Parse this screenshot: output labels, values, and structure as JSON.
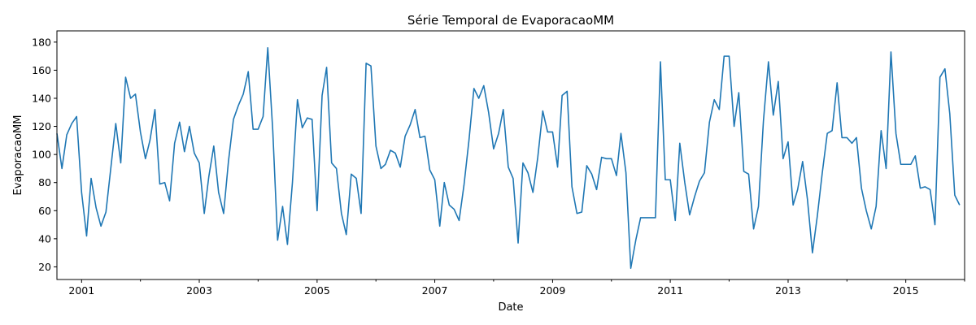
{
  "chart_data": {
    "type": "line",
    "title": "Série Temporal de EvaporacaoMM",
    "xlabel": "Date",
    "ylabel": "EvaporacaoMM",
    "xlim": [
      "2000-08-01",
      "2016-01-01"
    ],
    "ylim": [
      11,
      188
    ],
    "grid": false,
    "line_color": "#1f77b4",
    "y_ticks": [
      20,
      40,
      60,
      80,
      100,
      120,
      140,
      160,
      180
    ],
    "x_major_ticks": [
      {
        "date": "2001-01-01",
        "label": "2001"
      },
      {
        "date": "2003-01-01",
        "label": "2003"
      },
      {
        "date": "2005-01-01",
        "label": "2005"
      },
      {
        "date": "2007-01-01",
        "label": "2007"
      },
      {
        "date": "2009-01-01",
        "label": "2009"
      },
      {
        "date": "2011-01-01",
        "label": "2011"
      },
      {
        "date": "2013-01-01",
        "label": "2013"
      },
      {
        "date": "2015-01-01",
        "label": "2015"
      }
    ],
    "x_minor_ticks": [
      "2002-01-01",
      "2004-01-01",
      "2006-01-01",
      "2008-01-01",
      "2010-01-01",
      "2012-01-01",
      "2014-01-01",
      "2016-01-01"
    ],
    "series": [
      {
        "points": [
          [
            "2000-08-01",
            115
          ],
          [
            "2000-09-01",
            90
          ],
          [
            "2000-10-01",
            114
          ],
          [
            "2000-11-01",
            122
          ],
          [
            "2000-12-01",
            127
          ],
          [
            "2001-01-01",
            73
          ],
          [
            "2001-02-01",
            42
          ],
          [
            "2001-03-01",
            83
          ],
          [
            "2001-04-01",
            62
          ],
          [
            "2001-05-01",
            49
          ],
          [
            "2001-06-01",
            59
          ],
          [
            "2001-07-01",
            90
          ],
          [
            "2001-08-01",
            122
          ],
          [
            "2001-09-01",
            94
          ],
          [
            "2001-10-01",
            155
          ],
          [
            "2001-11-01",
            140
          ],
          [
            "2001-12-01",
            143
          ],
          [
            "2002-01-01",
            116
          ],
          [
            "2002-02-01",
            97
          ],
          [
            "2002-03-01",
            110
          ],
          [
            "2002-04-01",
            132
          ],
          [
            "2002-05-01",
            79
          ],
          [
            "2002-06-01",
            80
          ],
          [
            "2002-07-01",
            67
          ],
          [
            "2002-08-01",
            108
          ],
          [
            "2002-09-01",
            123
          ],
          [
            "2002-10-01",
            102
          ],
          [
            "2002-11-01",
            120
          ],
          [
            "2002-12-01",
            101
          ],
          [
            "2003-01-01",
            94
          ],
          [
            "2003-02-01",
            58
          ],
          [
            "2003-03-01",
            84
          ],
          [
            "2003-04-01",
            106
          ],
          [
            "2003-05-01",
            73
          ],
          [
            "2003-06-01",
            58
          ],
          [
            "2003-07-01",
            95
          ],
          [
            "2003-08-01",
            125
          ],
          [
            "2003-09-01",
            135
          ],
          [
            "2003-10-01",
            143
          ],
          [
            "2003-11-01",
            159
          ],
          [
            "2003-12-01",
            118
          ],
          [
            "2004-01-01",
            118
          ],
          [
            "2004-02-01",
            127
          ],
          [
            "2004-03-01",
            176
          ],
          [
            "2004-04-01",
            117
          ],
          [
            "2004-05-01",
            39
          ],
          [
            "2004-06-01",
            63
          ],
          [
            "2004-07-01",
            36
          ],
          [
            "2004-08-01",
            80
          ],
          [
            "2004-09-01",
            139
          ],
          [
            "2004-10-01",
            119
          ],
          [
            "2004-11-01",
            126
          ],
          [
            "2004-12-01",
            125
          ],
          [
            "2005-01-01",
            60
          ],
          [
            "2005-02-01",
            142
          ],
          [
            "2005-03-01",
            162
          ],
          [
            "2005-04-01",
            94
          ],
          [
            "2005-05-01",
            90
          ],
          [
            "2005-06-01",
            58
          ],
          [
            "2005-07-01",
            43
          ],
          [
            "2005-08-01",
            86
          ],
          [
            "2005-09-01",
            83
          ],
          [
            "2005-10-01",
            58
          ],
          [
            "2005-11-01",
            165
          ],
          [
            "2005-12-01",
            163
          ],
          [
            "2006-01-01",
            106
          ],
          [
            "2006-02-01",
            90
          ],
          [
            "2006-03-01",
            93
          ],
          [
            "2006-04-01",
            103
          ],
          [
            "2006-05-01",
            101
          ],
          [
            "2006-06-01",
            91
          ],
          [
            "2006-07-01",
            113
          ],
          [
            "2006-08-01",
            121
          ],
          [
            "2006-09-01",
            132
          ],
          [
            "2006-10-01",
            112
          ],
          [
            "2006-11-01",
            113
          ],
          [
            "2006-12-01",
            89
          ],
          [
            "2007-01-01",
            82
          ],
          [
            "2007-02-01",
            49
          ],
          [
            "2007-03-01",
            80
          ],
          [
            "2007-04-01",
            64
          ],
          [
            "2007-05-01",
            61
          ],
          [
            "2007-06-01",
            53
          ],
          [
            "2007-07-01",
            78
          ],
          [
            "2007-08-01",
            110
          ],
          [
            "2007-09-01",
            147
          ],
          [
            "2007-10-01",
            140
          ],
          [
            "2007-11-01",
            149
          ],
          [
            "2007-12-01",
            130
          ],
          [
            "2008-01-01",
            104
          ],
          [
            "2008-02-01",
            115
          ],
          [
            "2008-03-01",
            132
          ],
          [
            "2008-04-01",
            91
          ],
          [
            "2008-05-01",
            83
          ],
          [
            "2008-06-01",
            37
          ],
          [
            "2008-07-01",
            94
          ],
          [
            "2008-08-01",
            87
          ],
          [
            "2008-09-01",
            73
          ],
          [
            "2008-10-01",
            98
          ],
          [
            "2008-11-01",
            131
          ],
          [
            "2008-12-01",
            116
          ],
          [
            "2009-01-01",
            116
          ],
          [
            "2009-02-01",
            91
          ],
          [
            "2009-03-01",
            142
          ],
          [
            "2009-04-01",
            145
          ],
          [
            "2009-05-01",
            77
          ],
          [
            "2009-06-01",
            58
          ],
          [
            "2009-07-01",
            59
          ],
          [
            "2009-08-01",
            92
          ],
          [
            "2009-09-01",
            86
          ],
          [
            "2009-10-01",
            75
          ],
          [
            "2009-11-01",
            98
          ],
          [
            "2009-12-01",
            97
          ],
          [
            "2010-01-01",
            97
          ],
          [
            "2010-02-01",
            85
          ],
          [
            "2010-03-01",
            115
          ],
          [
            "2010-04-01",
            87
          ],
          [
            "2010-05-01",
            19
          ],
          [
            "2010-06-01",
            39
          ],
          [
            "2010-07-01",
            55
          ],
          [
            "2010-08-01",
            55
          ],
          [
            "2010-09-01",
            55
          ],
          [
            "2010-10-01",
            55
          ],
          [
            "2010-11-01",
            166
          ],
          [
            "2010-12-01",
            82
          ],
          [
            "2011-01-01",
            82
          ],
          [
            "2011-02-01",
            53
          ],
          [
            "2011-03-01",
            108
          ],
          [
            "2011-04-01",
            80
          ],
          [
            "2011-05-01",
            57
          ],
          [
            "2011-06-01",
            70
          ],
          [
            "2011-07-01",
            81
          ],
          [
            "2011-08-01",
            87
          ],
          [
            "2011-09-01",
            123
          ],
          [
            "2011-10-01",
            139
          ],
          [
            "2011-11-01",
            132
          ],
          [
            "2011-12-01",
            170
          ],
          [
            "2012-01-01",
            170
          ],
          [
            "2012-02-01",
            120
          ],
          [
            "2012-03-01",
            144
          ],
          [
            "2012-04-01",
            88
          ],
          [
            "2012-05-01",
            86
          ],
          [
            "2012-06-01",
            47
          ],
          [
            "2012-07-01",
            63
          ],
          [
            "2012-08-01",
            124
          ],
          [
            "2012-09-01",
            166
          ],
          [
            "2012-10-01",
            128
          ],
          [
            "2012-11-01",
            152
          ],
          [
            "2012-12-01",
            97
          ],
          [
            "2013-01-01",
            109
          ],
          [
            "2013-02-01",
            64
          ],
          [
            "2013-03-01",
            75
          ],
          [
            "2013-04-01",
            95
          ],
          [
            "2013-05-01",
            68
          ],
          [
            "2013-06-01",
            30
          ],
          [
            "2013-07-01",
            56
          ],
          [
            "2013-08-01",
            87
          ],
          [
            "2013-09-01",
            115
          ],
          [
            "2013-10-01",
            117
          ],
          [
            "2013-11-01",
            151
          ],
          [
            "2013-12-01",
            112
          ],
          [
            "2014-01-01",
            112
          ],
          [
            "2014-02-01",
            108
          ],
          [
            "2014-03-01",
            112
          ],
          [
            "2014-04-01",
            76
          ],
          [
            "2014-05-01",
            60
          ],
          [
            "2014-06-01",
            47
          ],
          [
            "2014-07-01",
            63
          ],
          [
            "2014-08-01",
            117
          ],
          [
            "2014-09-01",
            90
          ],
          [
            "2014-10-01",
            173
          ],
          [
            "2014-11-01",
            115
          ],
          [
            "2014-12-01",
            93
          ],
          [
            "2015-01-01",
            93
          ],
          [
            "2015-02-01",
            93
          ],
          [
            "2015-03-01",
            99
          ],
          [
            "2015-04-01",
            76
          ],
          [
            "2015-05-01",
            77
          ],
          [
            "2015-06-01",
            75
          ],
          [
            "2015-07-01",
            50
          ],
          [
            "2015-08-01",
            155
          ],
          [
            "2015-09-01",
            161
          ],
          [
            "2015-10-01",
            129
          ],
          [
            "2015-11-01",
            71
          ],
          [
            "2015-12-01",
            64
          ]
        ]
      }
    ]
  }
}
